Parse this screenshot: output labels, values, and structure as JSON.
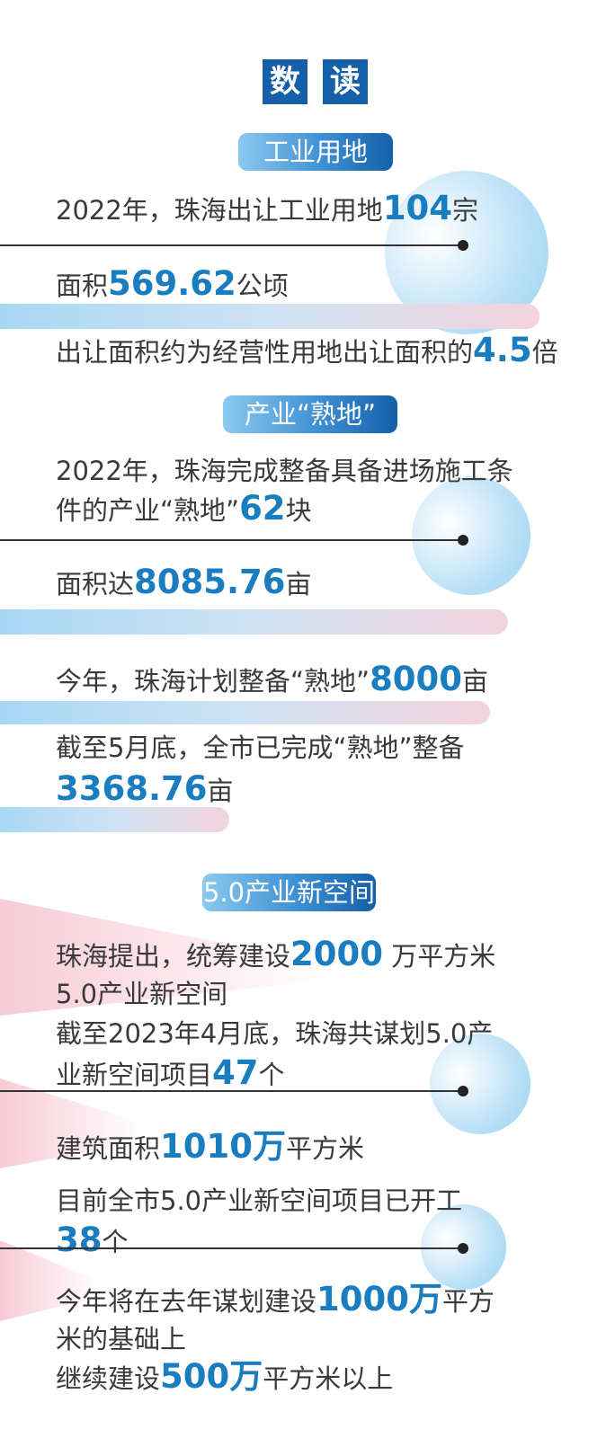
{
  "header": {
    "title_chars": [
      "数",
      "读"
    ]
  },
  "colors": {
    "title_bg": "#1560a8",
    "highlight": "#1a7dc0",
    "text": "#3a3a3a"
  },
  "sections": [
    {
      "heading": "工业用地",
      "lines": [
        [
          {
            "t": "2022年，珠海出让工业用地"
          },
          {
            "t": "104",
            "hl": true
          },
          {
            "t": "宗"
          }
        ],
        [
          {
            "t": "面积"
          },
          {
            "t": "569.62",
            "hl": true
          },
          {
            "t": "公顷"
          }
        ],
        [
          {
            "t": "出让面积约为经营性用地出让面积的"
          },
          {
            "t": "4.5",
            "hl": true
          },
          {
            "t": "倍"
          }
        ]
      ]
    },
    {
      "heading": "产业“熟地”",
      "lines": [
        [
          {
            "t": "2022年，珠海完成整备具备进场施工条"
          }
        ],
        [
          {
            "t": "件的产业“熟地”"
          },
          {
            "t": "62",
            "hl": true
          },
          {
            "t": "块"
          }
        ],
        [
          {
            "t": "面积达"
          },
          {
            "t": "8085.76",
            "hl": true
          },
          {
            "t": "亩"
          }
        ],
        [
          {
            "t": "今年，珠海计划整备“熟地”"
          },
          {
            "t": "8000",
            "hl": true
          },
          {
            "t": "亩"
          }
        ],
        [
          {
            "t": "截至5月底，全市已完成“熟地”整备"
          }
        ],
        [
          {
            "t": "3368.76",
            "hl": true
          },
          {
            "t": "亩"
          }
        ]
      ]
    },
    {
      "heading": "5.0产业新空间",
      "lines": [
        [
          {
            "t": "珠海提出，统筹建设"
          },
          {
            "t": "2000",
            "hl": true
          },
          {
            "t": " 万平方米"
          }
        ],
        [
          {
            "t": "5.0产业新空间"
          }
        ],
        [
          {
            "t": "截至2023年4月底，珠海共谋划5.0产"
          }
        ],
        [
          {
            "t": "业新空间项目"
          },
          {
            "t": "47",
            "hl": true
          },
          {
            "t": "个"
          }
        ],
        [
          {
            "t": "建筑面积"
          },
          {
            "t": "1010万",
            "hl": true
          },
          {
            "t": "平方米"
          }
        ],
        [
          {
            "t": "目前全市5.0产业新空间项目已开工"
          }
        ],
        [
          {
            "t": "38",
            "hl": true
          },
          {
            "t": "个"
          }
        ],
        [
          {
            "t": "今年将在去年谋划建设"
          },
          {
            "t": "1000万",
            "hl": true
          },
          {
            "t": "平方"
          }
        ],
        [
          {
            "t": "米的基础上"
          }
        ],
        [
          {
            "t": "继续建设"
          },
          {
            "t": "500万",
            "hl": true
          },
          {
            "t": "平方米以上"
          }
        ]
      ]
    }
  ]
}
